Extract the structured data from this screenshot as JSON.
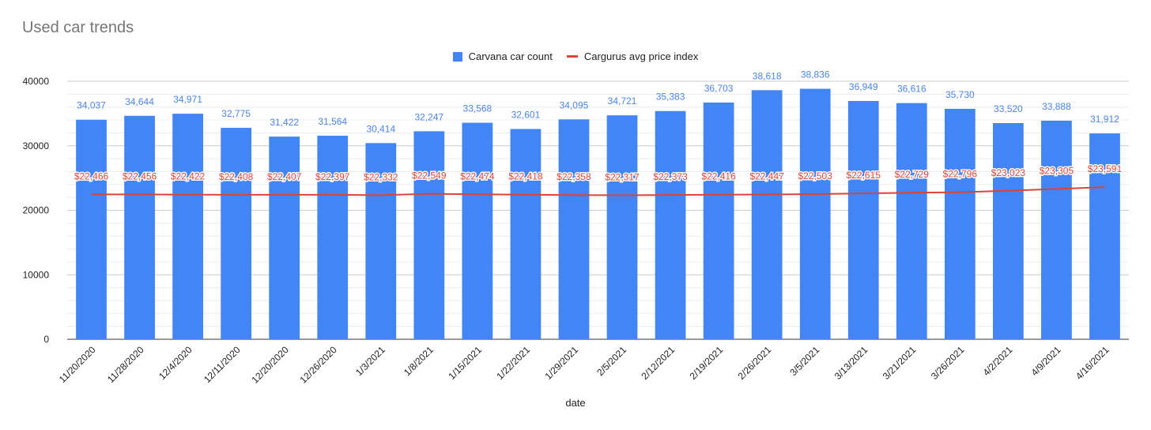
{
  "chart_data": {
    "type": "bar",
    "title": "Used car trends",
    "xlabel": "date",
    "ylabel": "",
    "ylim": [
      0,
      40000
    ],
    "yticks": [
      "0",
      "10000",
      "20000",
      "30000",
      "40000"
    ],
    "grid": true,
    "legend_position": "top",
    "categories": [
      "11/20/2020",
      "11/28/2020",
      "12/4/2020",
      "12/11/2020",
      "12/20/2020",
      "12/26/2020",
      "1/3/2021",
      "1/8/2021",
      "1/15/2021",
      "1/22/2021",
      "1/29/2021",
      "2/5/2021",
      "2/12/2021",
      "2/19/2021",
      "2/26/2021",
      "3/5/2021",
      "3/13/2021",
      "3/21/2021",
      "3/26/2021",
      "4/2/2021",
      "4/9/2021",
      "4/16/2021"
    ],
    "series": [
      {
        "name": "Carvana car count",
        "type": "bar",
        "color": "#4285f4",
        "values": [
          34037,
          34644,
          34971,
          32775,
          31422,
          31564,
          30414,
          32247,
          33568,
          32601,
          34095,
          34721,
          35383,
          36703,
          38618,
          38836,
          36949,
          36616,
          35730,
          33520,
          33888,
          31912
        ],
        "labels": [
          "34,037",
          "34,644",
          "34,971",
          "32,775",
          "31,422",
          "31,564",
          "30,414",
          "32,247",
          "33,568",
          "32,601",
          "34,095",
          "34,721",
          "35,383",
          "36,703",
          "38,618",
          "38,836",
          "36,949",
          "36,616",
          "35,730",
          "33,520",
          "33,888",
          "31,912"
        ]
      },
      {
        "name": "Cargurus avg price index",
        "type": "line",
        "color": "#db4437",
        "values": [
          22466,
          22456,
          22422,
          22408,
          22407,
          22397,
          22332,
          22549,
          22474,
          22418,
          22358,
          22317,
          22373,
          22416,
          22447,
          22503,
          22615,
          22729,
          22796,
          23023,
          23305,
          23591
        ],
        "labels": [
          "$22,466",
          "$22,456",
          "$22,422",
          "$22,408",
          "$22,407",
          "$22,397",
          "$22,332",
          "$22,549",
          "$22,474",
          "$22,418",
          "$22,358",
          "$22,317",
          "$22,373",
          "$22,416",
          "$22,447",
          "$22,503",
          "$22,615",
          "$22,729",
          "$22,796",
          "$23,023",
          "$23,305",
          "$23,591"
        ]
      }
    ]
  }
}
